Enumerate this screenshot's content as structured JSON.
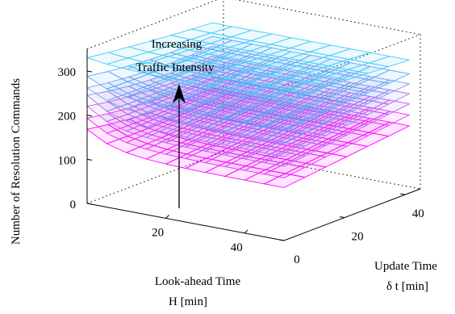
{
  "chart_data": {
    "type": "surface-3d",
    "title": "",
    "ylabel": "Number of Resolution Commands",
    "xlabel_lines": [
      "Look-ahead Time",
      "H [min]"
    ],
    "zlabel_lines": [
      "Update Time",
      "δ t [min]"
    ],
    "annotation_lines": [
      "Increasing",
      "Traffic Intensity"
    ],
    "annotation_arrow_direction": "up",
    "y_axis": {
      "range": [
        0,
        350
      ],
      "ticks": [
        0,
        100,
        200,
        300
      ]
    },
    "x_axis": {
      "range": [
        0,
        50
      ],
      "ticks": [
        20,
        40
      ]
    },
    "z_axis": {
      "range": [
        0,
        45
      ],
      "ticks": [
        0,
        20,
        40
      ]
    },
    "grid": false,
    "surfaces": [
      {
        "level": 1,
        "color": "#ff00ff",
        "near_min": 120,
        "near_max": 168,
        "far_value": 155
      },
      {
        "level": 2,
        "color": "#dd33ee",
        "near_min": 142,
        "near_max": 193,
        "far_value": 180
      },
      {
        "level": 3,
        "color": "#c055f0",
        "near_min": 168,
        "near_max": 220,
        "far_value": 205
      },
      {
        "level": 4,
        "color": "#9a77ee",
        "near_min": 190,
        "near_max": 245,
        "far_value": 228
      },
      {
        "level": 5,
        "color": "#7a99f2",
        "near_min": 220,
        "near_max": 262,
        "far_value": 250
      },
      {
        "level": 6,
        "color": "#55aaf4",
        "near_min": 248,
        "near_max": 288,
        "far_value": 272
      },
      {
        "level": 7,
        "color": "#44ccf8",
        "near_min": 318,
        "near_max": 330,
        "far_value": 300
      }
    ]
  }
}
